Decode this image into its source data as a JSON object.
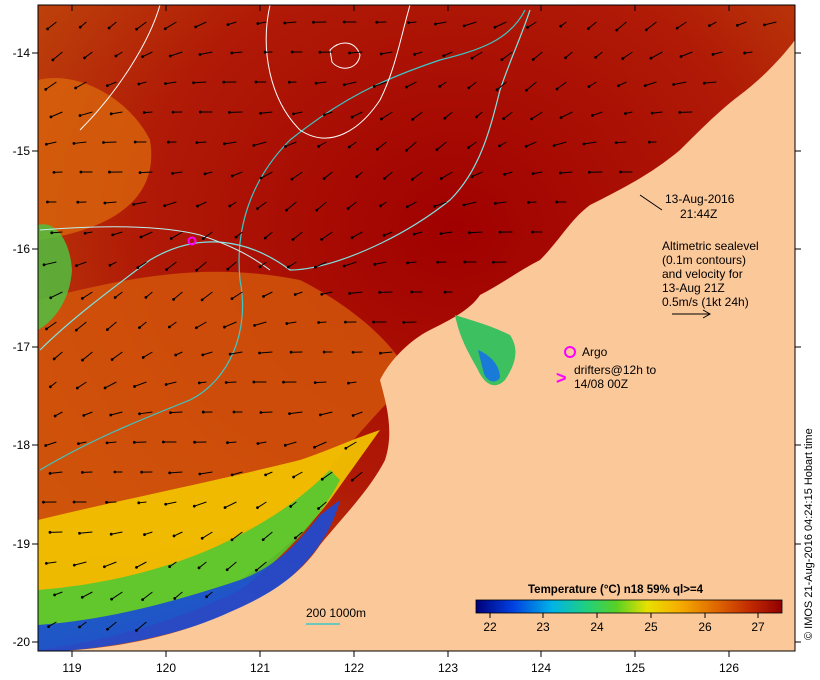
{
  "map": {
    "lon_ticks": [
      "119",
      "120",
      "121",
      "122",
      "123",
      "124",
      "125",
      "126"
    ],
    "lat_ticks": [
      "-14",
      "-15",
      "-16",
      "-17",
      "-18",
      "-19",
      "-20"
    ],
    "date_line1": "13-Aug-2016",
    "date_line2": "21:44Z",
    "altimetry_lines": [
      "Altimetric sealevel",
      "(0.1m contours)",
      "and velocity for",
      "13-Aug 21Z",
      "0.5m/s (1kt 24h)"
    ],
    "argo_label": "Argo",
    "drifters_line1": "drifters@12h to",
    "drifters_line2": "14/08 00Z",
    "depth_legend": "200  1000m",
    "colorbar_title": "Temperature (°C) n18 59% ql>=4",
    "colorbar_ticks": [
      "22",
      "23",
      "24",
      "25",
      "26",
      "27"
    ],
    "credit": "© IMOS 21-Aug-2016 04:24:15 Hobart time",
    "colors": {
      "land": "#fbc89a",
      "sst_warm": "#a40000",
      "sst_mid": "#d9600a",
      "sst_cool": "#f4d000",
      "sst_cold": "#39c33a",
      "isobath_200": "#3cc8c8",
      "isobath_1000": "#7fe0e0",
      "argo": "#ff00ff"
    }
  }
}
